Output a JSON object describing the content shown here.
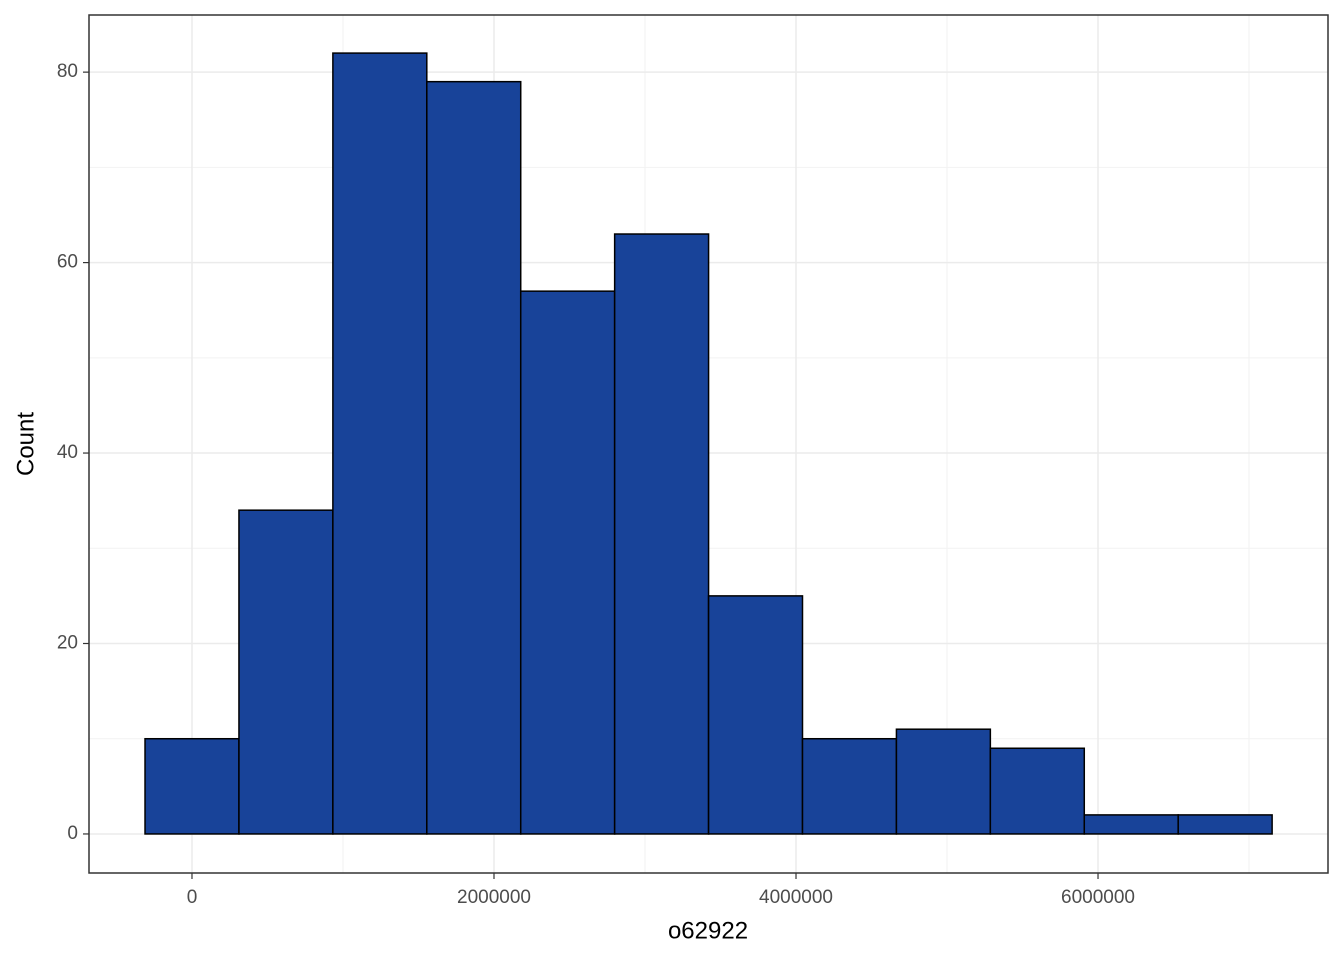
{
  "chart_data": {
    "type": "histogram",
    "x_label": "o62922",
    "y_label": "Count",
    "bins": [
      -311000,
      311000,
      933000,
      1555000,
      2177000,
      2799000,
      3421000,
      4043000,
      4665000,
      5287000,
      5909000,
      6531000,
      7153000
    ],
    "values": [
      10,
      34,
      82,
      79,
      57,
      63,
      25,
      10,
      11,
      9,
      2,
      2
    ],
    "color": "#184399",
    "xlim": [
      -682000,
      7523000
    ],
    "ylim": [
      -4.1,
      86.0
    ],
    "xticks": [
      0,
      2000000,
      4000000,
      6000000
    ],
    "yticks": [
      0,
      20,
      40,
      60,
      80
    ],
    "grid": true
  }
}
